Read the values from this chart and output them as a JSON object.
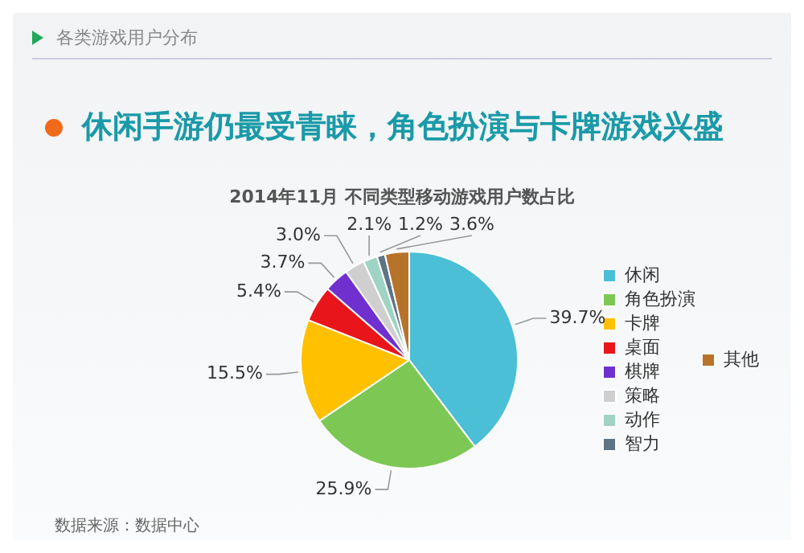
{
  "chart_data": {
    "type": "pie",
    "title": "休闲手游仍最受青睐，角色扮演与卡牌游戏兴盛",
    "subtitle": "2014年11月 不同类型移动游戏用户数占比",
    "categories": [
      "休闲",
      "角色扮演",
      "卡牌",
      "桌面",
      "棋牌",
      "策略",
      "动作",
      "智力",
      "其他"
    ],
    "values": [
      39.7,
      25.9,
      15.5,
      5.4,
      3.7,
      3.0,
      2.1,
      1.2,
      3.6
    ],
    "value_labels": [
      "39.7%",
      "25.9%",
      "15.5%",
      "5.4%",
      "3.7%",
      "3.0%",
      "2.1%",
      "1.2%",
      "3.6%"
    ],
    "colors": [
      "#4bbfd6",
      "#7dc855",
      "#ffc000",
      "#e8161b",
      "#7030d0",
      "#cfcfcf",
      "#9fd3c4",
      "#5f7485",
      "#b8732a"
    ],
    "legend": "right",
    "annotations": [
      "各类游戏用户分布",
      "数据来源：数据中心"
    ]
  }
}
